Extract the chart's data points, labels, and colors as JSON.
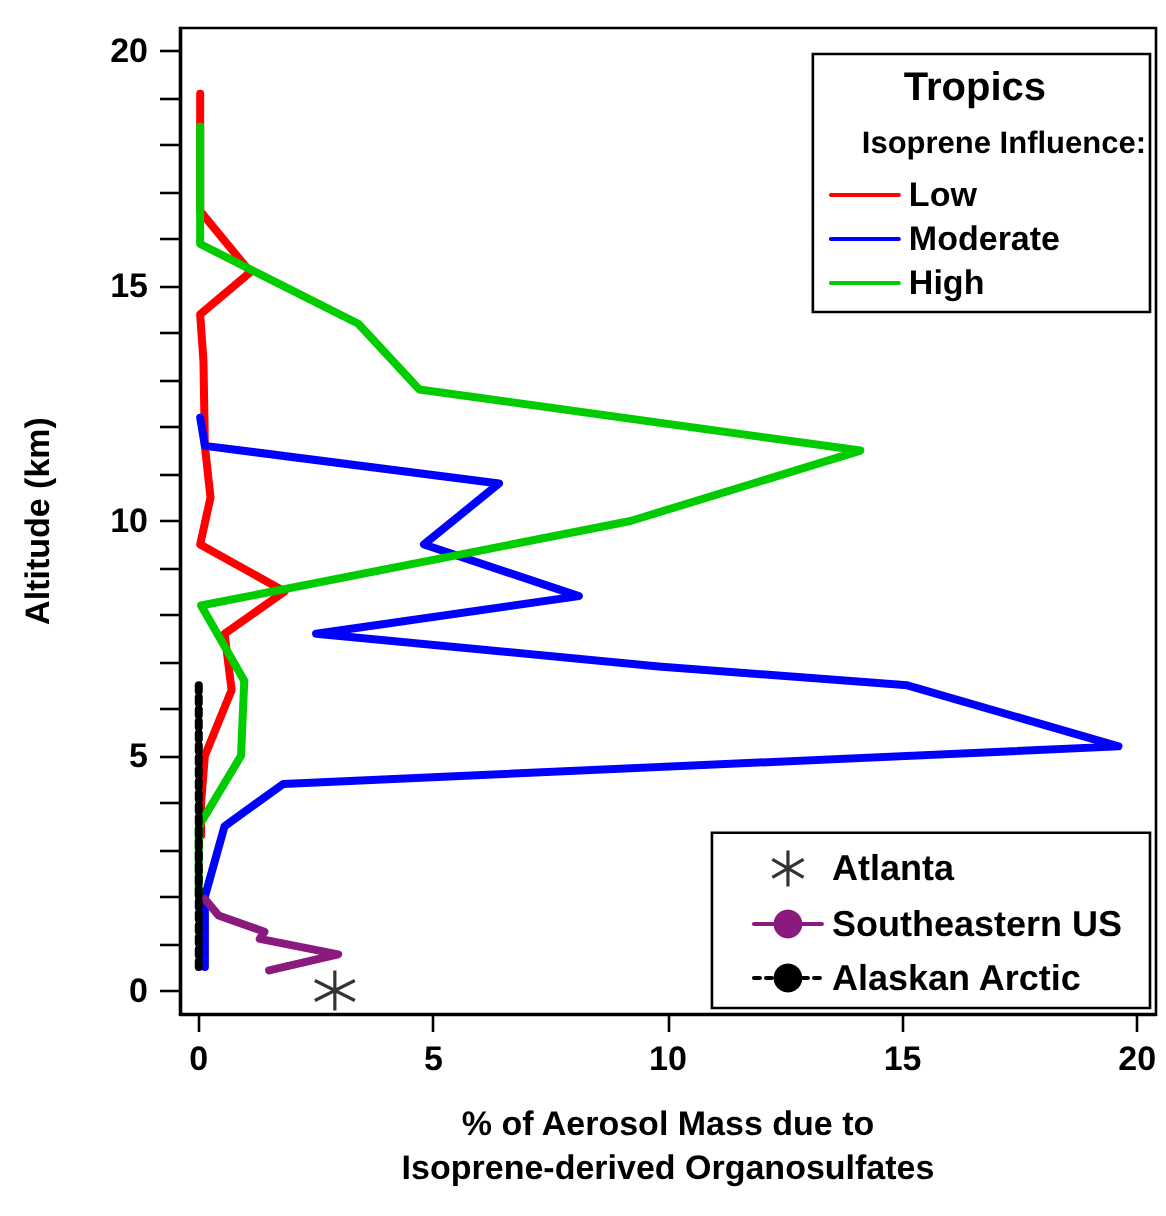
{
  "chart_data": {
    "type": "line",
    "xlabel": "% of Aerosol Mass due to\nIsoprene-derived Organosulfates",
    "ylabel": "Altitude (km)",
    "legend_title": "Tropics",
    "annotations": [
      "Isoprene Influence:"
    ],
    "xlim": [
      -0.4,
      20.4
    ],
    "ylim": [
      -0.5,
      20.5
    ],
    "xticks": [
      0,
      5,
      10,
      15,
      20
    ],
    "yticks": [
      0,
      {
        "value": 1,
        "label": null
      },
      {
        "value": 2,
        "label": null
      },
      {
        "value": 3,
        "label": null
      },
      {
        "value": 4,
        "label": null
      },
      5,
      {
        "value": 6,
        "label": null
      },
      {
        "value": 7,
        "label": null
      },
      {
        "value": 8,
        "label": null
      },
      {
        "value": 9,
        "label": null
      },
      10,
      {
        "value": 11,
        "label": null
      },
      {
        "value": 12,
        "label": null
      },
      {
        "value": 13,
        "label": null
      },
      {
        "value": 14,
        "label": null
      },
      15,
      {
        "value": 16,
        "label": null
      },
      {
        "value": 17,
        "label": null
      },
      {
        "value": 18,
        "label": null
      },
      {
        "value": 19,
        "label": null
      },
      20
    ],
    "grid": false,
    "legend": "right",
    "marker": "none",
    "line_style": "solid",
    "series": [
      {
        "name": "Low",
        "color": "#ff0000",
        "x": [
          0.03,
          0.03,
          1.1,
          0.03,
          0.1,
          0.13,
          0.25,
          0.03,
          1.83,
          0.55,
          0.7,
          0.13,
          0.05,
          0.05
        ],
        "values": [
          19.1,
          16.6,
          15.3,
          14.4,
          13.4,
          11.6,
          10.5,
          9.5,
          8.5,
          7.6,
          6.4,
          5.0,
          4.0,
          3.3
        ]
      },
      {
        "name": "Moderate",
        "color": "#0000ff",
        "x": [
          0.03,
          0.13,
          6.4,
          4.8,
          8.1,
          2.5,
          9.8,
          15.1,
          19.6,
          1.8,
          0.55,
          0.13,
          0.13
        ],
        "values": [
          12.2,
          11.6,
          10.8,
          9.5,
          8.4,
          7.6,
          6.9,
          6.5,
          5.2,
          4.4,
          3.5,
          2.0,
          0.5
        ]
      },
      {
        "name": "High",
        "color": "#00cc00",
        "x": [
          0.03,
          0.03,
          3.4,
          4.7,
          14.1,
          9.2,
          0.05,
          0.97,
          0.9,
          0.0,
          0.0
        ],
        "values": [
          18.4,
          15.9,
          14.2,
          12.8,
          11.5,
          10.0,
          8.2,
          6.6,
          5.0,
          3.5,
          2.0
        ]
      },
      {
        "name": "Atlanta",
        "type": "scatter",
        "marker": "cross",
        "color": "#000000",
        "x": [
          2.9
        ],
        "values": [
          0.0
        ]
      },
      {
        "name": "Southeastern US",
        "color": "#8b1a7f",
        "x": [
          0.13,
          0.42,
          1.4,
          1.3,
          2.97,
          1.5
        ],
        "values": [
          1.95,
          1.6,
          1.25,
          1.1,
          0.77,
          0.43
        ]
      },
      {
        "name": "Alaskan Arctic",
        "color": "#000000",
        "line_style": "dotted",
        "x": [
          0.0,
          0.0
        ],
        "values": [
          6.5,
          0.5
        ]
      }
    ]
  }
}
